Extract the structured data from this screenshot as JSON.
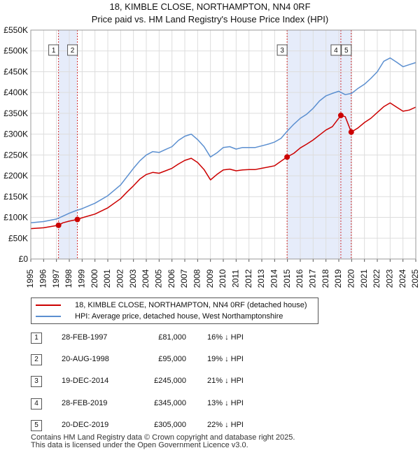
{
  "title": "18, KIMBLE CLOSE, NORTHAMPTON, NN4 0RF",
  "subtitle": "Price paid vs. HM Land Registry's House Price Index (HPI)",
  "colors": {
    "property": "#cc0000",
    "hpi": "#5b8fd0",
    "shade": "#e6ecfa",
    "grid": "#dddddd"
  },
  "legend": {
    "property_label": "18, KIMBLE CLOSE, NORTHAMPTON, NN4 0RF (detached house)",
    "hpi_label": "HPI: Average price, detached house, West Northamptonshire"
  },
  "sales": [
    {
      "num": "1",
      "date": "28-FEB-1997",
      "price": "£81,000",
      "hpi": "16% ↓ HPI"
    },
    {
      "num": "2",
      "date": "20-AUG-1998",
      "price": "£95,000",
      "hpi": "19% ↓ HPI"
    },
    {
      "num": "3",
      "date": "19-DEC-2014",
      "price": "£245,000",
      "hpi": "21% ↓ HPI"
    },
    {
      "num": "4",
      "date": "28-FEB-2019",
      "price": "£345,000",
      "hpi": "13% ↓ HPI"
    },
    {
      "num": "5",
      "date": "20-DEC-2019",
      "price": "£305,000",
      "hpi": "22% ↓ HPI"
    }
  ],
  "footer": {
    "line1": "Contains HM Land Registry data © Crown copyright and database right 2025.",
    "line2": "This data is licensed under the Open Government Licence v3.0."
  },
  "chart_data": {
    "type": "line",
    "xlim": [
      1995,
      2025
    ],
    "ylim": [
      0,
      550000
    ],
    "x_ticks": [
      "1995",
      "1996",
      "1997",
      "1998",
      "1999",
      "2000",
      "2001",
      "2002",
      "2003",
      "2004",
      "2005",
      "2006",
      "2007",
      "2008",
      "2009",
      "2010",
      "2011",
      "2012",
      "2013",
      "2014",
      "2015",
      "2016",
      "2017",
      "2018",
      "2019",
      "2020",
      "2021",
      "2022",
      "2023",
      "2024",
      "2025"
    ],
    "y_ticks": [
      {
        "value": 0,
        "label": "£0"
      },
      {
        "value": 50000,
        "label": "£50K"
      },
      {
        "value": 100000,
        "label": "£100K"
      },
      {
        "value": 150000,
        "label": "£150K"
      },
      {
        "value": 200000,
        "label": "£200K"
      },
      {
        "value": 250000,
        "label": "£250K"
      },
      {
        "value": 300000,
        "label": "£300K"
      },
      {
        "value": 350000,
        "label": "£350K"
      },
      {
        "value": 400000,
        "label": "£400K"
      },
      {
        "value": 450000,
        "label": "£450K"
      },
      {
        "value": 500000,
        "label": "£500K"
      },
      {
        "value": 550000,
        "label": "£550K"
      }
    ],
    "grid": true,
    "shaded_periods": [
      [
        1997.16,
        1998.63
      ],
      [
        2014.97,
        2019.97
      ]
    ],
    "sale_markers": [
      {
        "label": "1",
        "x": 1997.16,
        "y": 81000
      },
      {
        "label": "2",
        "x": 1998.63,
        "y": 95000
      },
      {
        "label": "3",
        "x": 2014.97,
        "y": 245000
      },
      {
        "label": "4",
        "x": 2019.16,
        "y": 345000
      },
      {
        "label": "5",
        "x": 2019.97,
        "y": 305000
      }
    ],
    "series": [
      {
        "name": "HPI: Average price, detached house, West Northamptonshire",
        "x": [
          1995,
          1996,
          1997,
          1997.5,
          1998,
          1998.5,
          1999,
          2000,
          2001,
          2002,
          2002.5,
          2003,
          2003.5,
          2004,
          2004.5,
          2005,
          2005.5,
          2006,
          2006.5,
          2007,
          2007.5,
          2008,
          2008.5,
          2009,
          2009.5,
          2010,
          2010.5,
          2011,
          2011.5,
          2012,
          2012.5,
          2013,
          2013.5,
          2014,
          2014.5,
          2015,
          2015.5,
          2016,
          2016.5,
          2017,
          2017.5,
          2018,
          2018.5,
          2019,
          2019.5,
          2020,
          2020.5,
          2021,
          2021.5,
          2022,
          2022.5,
          2023,
          2023.5,
          2024,
          2024.5,
          2025
        ],
        "y": [
          87000,
          90000,
          96000,
          103000,
          110000,
          116000,
          121000,
          134000,
          152000,
          178000,
          198000,
          218000,
          236000,
          250000,
          258000,
          256000,
          263000,
          270000,
          285000,
          295000,
          300000,
          287000,
          270000,
          245000,
          255000,
          268000,
          270000,
          264000,
          268000,
          268000,
          268000,
          272000,
          276000,
          281000,
          290000,
          308000,
          324000,
          338000,
          348000,
          362000,
          380000,
          392000,
          398000,
          403000,
          395000,
          398000,
          410000,
          420000,
          434000,
          450000,
          475000,
          483000,
          473000,
          462000,
          467000,
          472000
        ]
      },
      {
        "name": "18, KIMBLE CLOSE, NORTHAMPTON, NN4 0RF (detached house)",
        "x": [
          1995,
          1996,
          1997.16,
          1997.5,
          1998,
          1998.63,
          1999,
          2000,
          2001,
          2002,
          2002.5,
          2003,
          2003.5,
          2004,
          2004.5,
          2005,
          2005.5,
          2006,
          2006.5,
          2007,
          2007.5,
          2008,
          2008.5,
          2009,
          2009.5,
          2010,
          2010.5,
          2011,
          2011.5,
          2012,
          2012.5,
          2013,
          2013.5,
          2014,
          2014.5,
          2014.97,
          2015.5,
          2016,
          2016.5,
          2017,
          2017.5,
          2018,
          2018.5,
          2019.16,
          2019.5,
          2019.97,
          2020.5,
          2021,
          2021.5,
          2022,
          2022.5,
          2023,
          2023.5,
          2024,
          2024.5,
          2025
        ],
        "y": [
          73000,
          75000,
          81000,
          87000,
          91000,
          95000,
          99000,
          108000,
          123000,
          145000,
          161000,
          176000,
          192000,
          203000,
          208000,
          206000,
          212000,
          218000,
          228000,
          237000,
          242000,
          232000,
          215000,
          190000,
          203000,
          214000,
          216000,
          212000,
          214000,
          215000,
          215000,
          218000,
          221000,
          224000,
          235000,
          245000,
          254000,
          267000,
          276000,
          286000,
          298000,
          310000,
          318000,
          345000,
          342000,
          305000,
          315000,
          328000,
          338000,
          352000,
          366000,
          375000,
          365000,
          355000,
          358000,
          365000
        ]
      }
    ]
  }
}
